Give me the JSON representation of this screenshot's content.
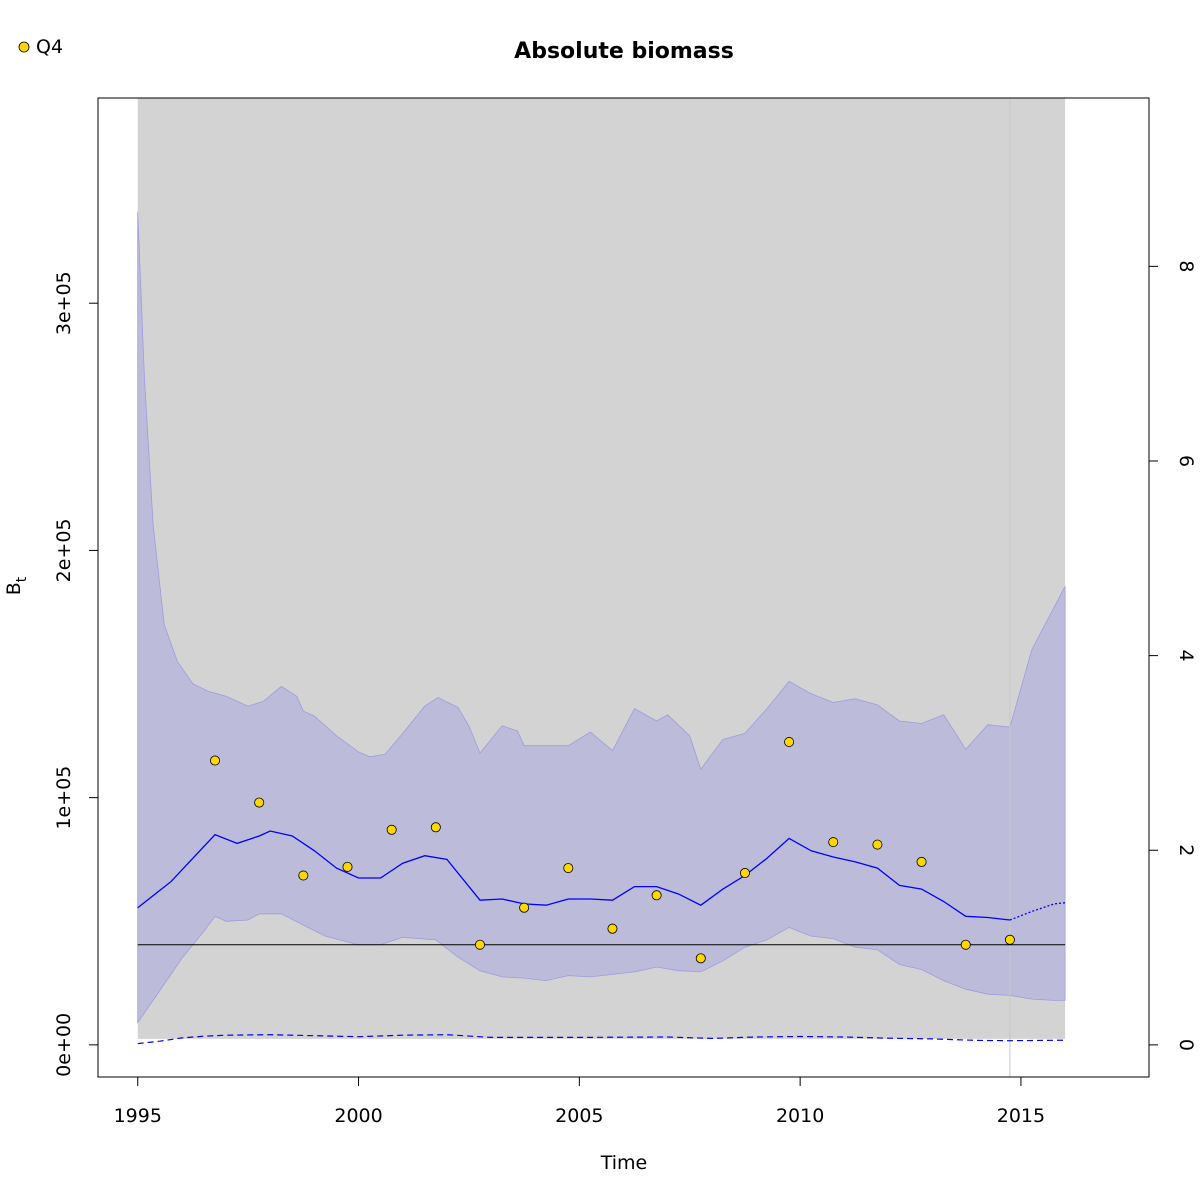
{
  "chart_data": {
    "type": "line",
    "title": "Absolute biomass",
    "xlabel": "Time",
    "ylabel": "B",
    "ylabel_subscript": "t",
    "xlim": [
      1994.1,
      2017.9
    ],
    "ylim": [
      -13000,
      383000
    ],
    "y2lim": [
      -0.33,
      9.73
    ],
    "x_ticks": [
      1995,
      2000,
      2005,
      2010,
      2015
    ],
    "x_tick_labels": [
      "1995",
      "2000",
      "2005",
      "2010",
      "2015"
    ],
    "y_ticks": [
      0,
      100000,
      200000,
      300000
    ],
    "y_tick_labels": [
      "0e+00",
      "1e+05",
      "2e+05",
      "3e+05"
    ],
    "y2_ticks": [
      0,
      2,
      4,
      6,
      8
    ],
    "y2_tick_labels": [
      "0",
      "2",
      "4",
      "6",
      "8"
    ],
    "legend": {
      "position": "top-left",
      "entries": [
        {
          "label": "Q4",
          "marker": "circle",
          "color": "#FFD700"
        }
      ]
    },
    "background_band": {
      "x": [
        1995,
        2016
      ],
      "color": "#D3D3D3"
    },
    "last_observation_line": {
      "x": 2014.75,
      "color": "#C8C8C8"
    },
    "reference_line": {
      "y": 40500,
      "color": "#000000"
    },
    "biomass_estimate": {
      "color": "#0000FF",
      "x": [
        1995,
        1995.75,
        1996.25,
        1996.75,
        1997.25,
        1997.75,
        1998,
        1998.5,
        1999,
        1999.5,
        2000,
        2000.5,
        2001,
        2001.5,
        2002,
        2002.75,
        2003.25,
        2003.75,
        2004.25,
        2004.75,
        2005.25,
        2005.75,
        2006.25,
        2006.75,
        2007.25,
        2007.75,
        2008.25,
        2008.75,
        2009.25,
        2009.75,
        2010.25,
        2010.75,
        2011.25,
        2011.75,
        2012.25,
        2012.75,
        2013.25,
        2013.75,
        2014.25,
        2014.75
      ],
      "y": [
        55500,
        66000,
        75500,
        85000,
        81500,
        84500,
        86500,
        84500,
        78500,
        71500,
        67500,
        67500,
        73500,
        76500,
        75000,
        58500,
        59000,
        57000,
        56500,
        59000,
        59000,
        58500,
        64000,
        64000,
        61000,
        56500,
        63000,
        68500,
        75500,
        83500,
        78500,
        76000,
        74000,
        71500,
        64500,
        63000,
        58000,
        52000,
        51500,
        50500
      ]
    },
    "biomass_forecast": {
      "color": "#0000FF",
      "x": [
        2014.75,
        2015.25,
        2015.75,
        2016
      ],
      "y": [
        50500,
        54000,
        57000,
        57500
      ]
    },
    "ci_upper": {
      "x": [
        1995,
        1995.15,
        1995.35,
        1995.6,
        1995.9,
        1996.25,
        1996.6,
        1997,
        1997.5,
        1997.85,
        1998.25,
        1998.6,
        1998.75,
        1999,
        1999.5,
        2000,
        2000.25,
        2000.6,
        2001,
        2001.5,
        2001.8,
        2002.25,
        2002.5,
        2002.75,
        2003.25,
        2003.6,
        2003.75,
        2004.25,
        2004.75,
        2005.25,
        2005.75,
        2006.25,
        2006.75,
        2007,
        2007.5,
        2007.75,
        2008.25,
        2008.75,
        2009.25,
        2009.75,
        2010.25,
        2010.75,
        2011.25,
        2011.75,
        2012.25,
        2012.75,
        2013.25,
        2013.75,
        2014.25,
        2014.75,
        2015.25,
        2015.75,
        2016
      ],
      "y": [
        337000,
        270000,
        210000,
        170000,
        155000,
        146000,
        143000,
        141000,
        137000,
        139000,
        145000,
        141000,
        135000,
        133000,
        125000,
        118500,
        116500,
        117500,
        126000,
        137000,
        140500,
        136500,
        129000,
        118000,
        129000,
        127000,
        121000,
        121000,
        121000,
        126500,
        119000,
        136000,
        131000,
        133500,
        125000,
        111500,
        123500,
        126000,
        136000,
        147000,
        142000,
        138500,
        140000,
        137500,
        131000,
        130000,
        133500,
        119500,
        129500,
        128500,
        160000,
        177000,
        185500
      ]
    },
    "ci_lower": {
      "x": [
        1995,
        1995.5,
        1996,
        1996.5,
        1996.75,
        1997,
        1997.5,
        1997.75,
        1998.25,
        1998.75,
        1999.25,
        2000,
        2000.5,
        2001,
        2001.75,
        2002.25,
        2002.75,
        2003.25,
        2003.75,
        2004.25,
        2004.75,
        2005.25,
        2005.75,
        2006.25,
        2006.75,
        2007.25,
        2007.75,
        2008.25,
        2008.75,
        2009.25,
        2009.75,
        2010.25,
        2010.75,
        2011.25,
        2011.75,
        2012.25,
        2012.75,
        2013.25,
        2013.75,
        2014.25,
        2014.75,
        2015.25,
        2015.75,
        2016
      ],
      "y": [
        9000,
        22000,
        35000,
        46000,
        52000,
        50000,
        50500,
        53000,
        53000,
        48500,
        44000,
        40500,
        40500,
        43500,
        42500,
        35500,
        30000,
        27500,
        27000,
        26000,
        28000,
        27500,
        28500,
        29500,
        31500,
        30000,
        29500,
        34000,
        39500,
        42500,
        47500,
        44000,
        43000,
        39500,
        38500,
        32500,
        30500,
        26000,
        22500,
        20500,
        20000,
        18500,
        18000,
        18000
      ]
    },
    "secondary_series": {
      "color": "#0000FF",
      "style": "dashed",
      "x": [
        1995,
        1995.5,
        1996,
        1996.5,
        1997,
        1998,
        1999,
        2000,
        2001,
        2002,
        2003,
        2004,
        2005,
        2006,
        2007,
        2008,
        2009,
        2010,
        2011,
        2012,
        2013,
        2014,
        2014.75,
        2016
      ],
      "y": [
        500,
        1500,
        2800,
        3500,
        3900,
        4100,
        3700,
        3300,
        3900,
        4100,
        3000,
        3000,
        3000,
        3100,
        3200,
        2600,
        3200,
        3400,
        3200,
        2700,
        2400,
        1800,
        1700,
        1900
      ]
    },
    "q4_index": {
      "name": "Q4",
      "color": "#FFD700",
      "x": [
        1996.75,
        1997.75,
        1998.75,
        1999.75,
        2000.75,
        2001.75,
        2002.75,
        2003.75,
        2004.75,
        2005.75,
        2006.75,
        2007.75,
        2008.75,
        2009.75,
        2010.75,
        2011.75,
        2012.75,
        2013.75,
        2014.75
      ],
      "y": [
        115000,
        98000,
        68500,
        72000,
        87000,
        88000,
        40500,
        55500,
        71500,
        47000,
        60500,
        35000,
        69500,
        122500,
        82000,
        81000,
        74000,
        40500,
        42500
      ]
    }
  }
}
